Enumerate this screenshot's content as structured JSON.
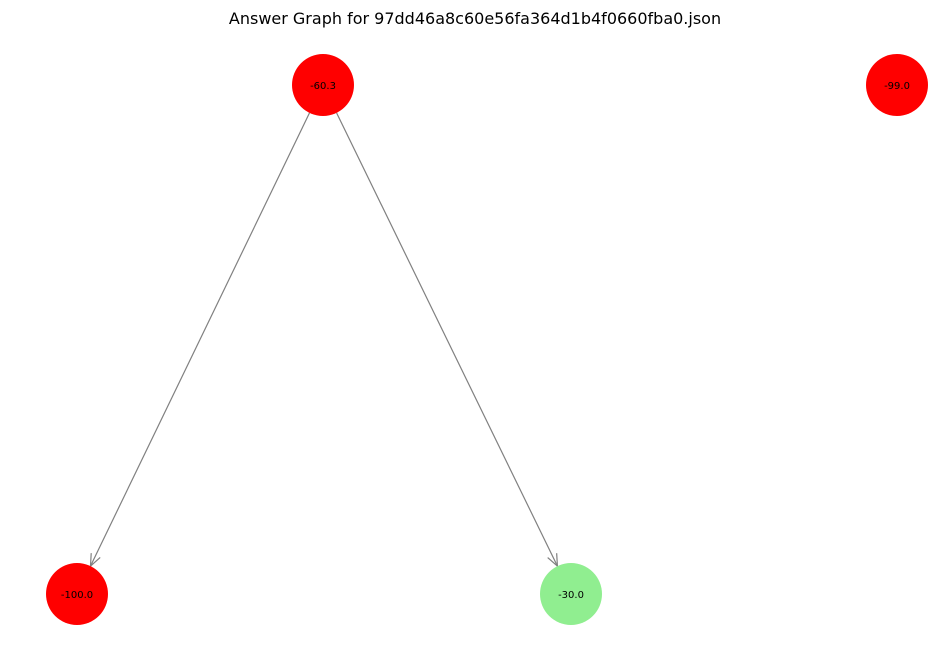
{
  "graph": {
    "title": "Answer Graph for 97dd46a8c60e56fa364d1b4f0660fba0.json",
    "edge_color": "#808080",
    "nodes": [
      {
        "id": "n1",
        "label": "-60.3",
        "color": "#ff0000"
      },
      {
        "id": "n2",
        "label": "-99.0",
        "color": "#ff0000"
      },
      {
        "id": "n3",
        "label": "-100.0",
        "color": "#ff0000"
      },
      {
        "id": "n4",
        "label": "-30.0",
        "color": "#90ee90"
      }
    ],
    "edges": [
      {
        "from": "n1",
        "to": "n3"
      },
      {
        "from": "n1",
        "to": "n4"
      }
    ]
  }
}
